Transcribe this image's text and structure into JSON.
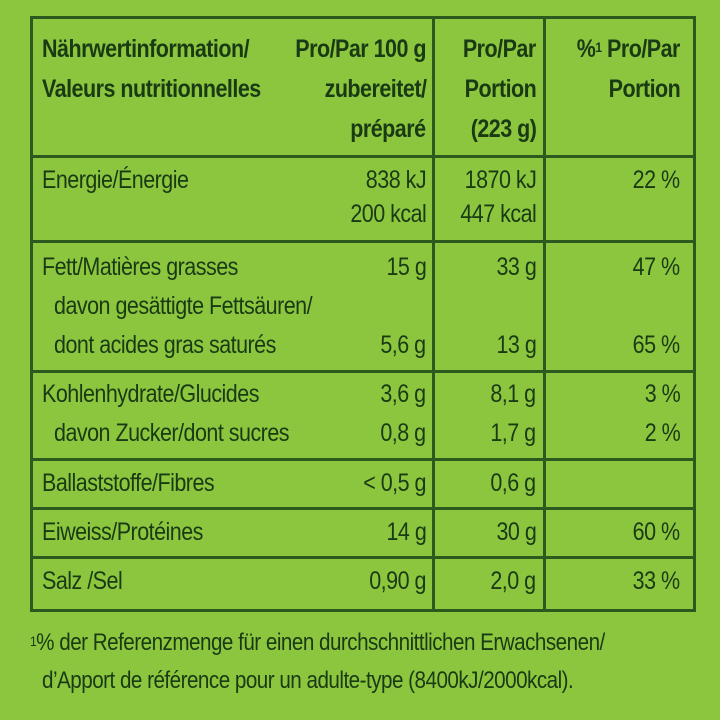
{
  "header": {
    "col1": [
      "Nährwertinformation/",
      "Valeurs nutritionnelles"
    ],
    "col2": [
      "Pro/Par 100 g",
      "zubereitet/",
      "préparé"
    ],
    "col3": [
      "Pro/Par",
      "Portion",
      "(223 g)"
    ],
    "col4_prefix": "%",
    "col4_sup": "1",
    "col4_rest": " Pro/Par",
    "col4_line2": "Portion"
  },
  "rows": {
    "energy": {
      "label": "Energie/Énergie",
      "per100_kj": "838 kJ",
      "per100_kcal": "200 kcal",
      "portion_kj": "1870 kJ",
      "portion_kcal": "447 kcal",
      "pct": "22 %"
    },
    "fat": {
      "label": "Fett/Matières grasses",
      "per100": "15 g",
      "portion": "33 g",
      "pct": "47 %"
    },
    "sat": {
      "label1": "davon gesättigte Fettsäuren/",
      "label2": "dont acides gras saturés",
      "per100": "5,6 g",
      "portion": "13 g",
      "pct": "65 %"
    },
    "carbs": {
      "label": "Kohlenhydrate/Glucides",
      "per100": "3,6 g",
      "portion": "8,1 g",
      "pct": "3 %"
    },
    "sugar": {
      "label": "davon Zucker/dont sucres",
      "per100": "0,8 g",
      "portion": "1,7 g",
      "pct": "2 %"
    },
    "fibre": {
      "label": "Ballaststoffe/Fibres",
      "per100": "< 0,5 g",
      "portion": "0,6 g",
      "pct": ""
    },
    "protein": {
      "label": "Eiweiss/Protéines",
      "per100": "14 g",
      "portion": "30 g",
      "pct": "60 %"
    },
    "salt": {
      "label": "Salz /Sel",
      "per100": "0,90 g",
      "portion": "2,0 g",
      "pct": "33 %"
    }
  },
  "footnote": {
    "sup": "1",
    "line1": "% der Referenzmenge für einen durchschnittlichen Erwachsenen/",
    "line2": "d’Apport de référence pour un adulte-type (8400kJ/2000kcal)."
  },
  "colors": {
    "background": "#8cc63f",
    "border": "#2c5a1e",
    "text": "#1a3a14"
  }
}
